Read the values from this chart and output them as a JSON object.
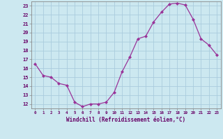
{
  "xlabel": "Windchill (Refroidissement éolien,°C)",
  "hours": [
    0,
    1,
    2,
    3,
    4,
    5,
    6,
    7,
    8,
    9,
    10,
    11,
    12,
    13,
    14,
    15,
    16,
    17,
    18,
    19,
    20,
    21,
    22,
    23
  ],
  "values": [
    16.5,
    15.2,
    15.0,
    14.3,
    14.1,
    12.2,
    11.7,
    12.0,
    12.0,
    12.2,
    13.3,
    15.6,
    17.3,
    19.3,
    19.6,
    21.2,
    22.3,
    23.2,
    23.3,
    23.1,
    21.5,
    19.3,
    18.6,
    17.5
  ],
  "ylim": [
    11.5,
    23.5
  ],
  "yticks": [
    12,
    13,
    14,
    15,
    16,
    17,
    18,
    19,
    20,
    21,
    22,
    23
  ],
  "line_color": "#993399",
  "marker_color": "#993399",
  "bg_color": "#cce8f0",
  "grid_color": "#aaccdd",
  "axis_label_color": "#660066",
  "tick_label_color": "#660066",
  "border_color": "#888888"
}
